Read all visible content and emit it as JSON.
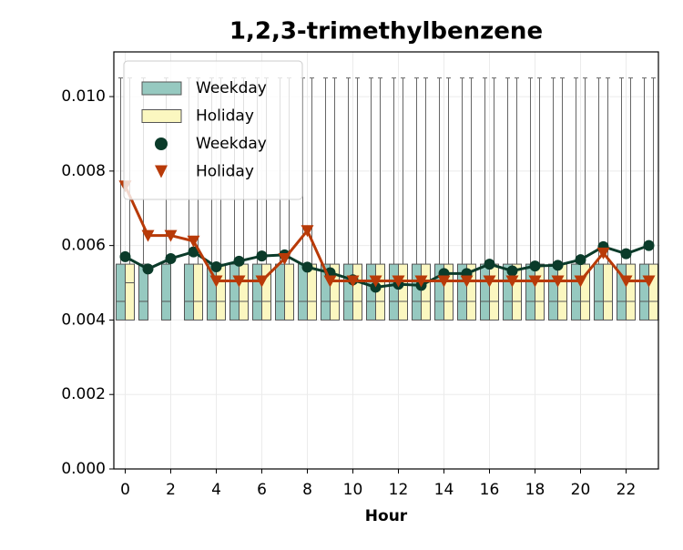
{
  "chart_data": {
    "type": "box",
    "title": "1,2,3-trimethylbenzene",
    "xlabel": "Hour",
    "x": [
      0,
      1,
      2,
      3,
      4,
      5,
      6,
      7,
      8,
      9,
      10,
      11,
      12,
      13,
      14,
      15,
      16,
      17,
      18,
      19,
      20,
      21,
      22,
      23
    ],
    "xlim": [
      -0.5,
      23.5
    ],
    "xticks": [
      0,
      2,
      4,
      6,
      8,
      10,
      12,
      14,
      16,
      18,
      20,
      22
    ],
    "ylim": [
      0,
      0.0112
    ],
    "yticks": [
      {
        "value": 0,
        "label": "0.000"
      },
      {
        "value": 0.002,
        "label": "0.002"
      },
      {
        "value": 0.004,
        "label": "0.004"
      },
      {
        "value": 0.006,
        "label": "0.006"
      },
      {
        "value": 0.008,
        "label": "0.008"
      },
      {
        "value": 0.01,
        "label": "0.010"
      }
    ],
    "grid": true,
    "legend": "upper left",
    "boxes": [
      {
        "name": "Weekday",
        "color": "#96c9c0",
        "whislo": [
          0.004,
          0.004,
          0.004,
          0.004,
          0.004,
          0.004,
          0.004,
          0.004,
          0.004,
          0.004,
          0.004,
          0.004,
          0.004,
          0.004,
          0.004,
          0.004,
          0.004,
          0.004,
          0.004,
          0.004,
          0.004,
          0.004,
          0.004,
          0.004
        ],
        "q1": [
          0.004,
          0.004,
          0.004,
          0.004,
          0.004,
          0.004,
          0.004,
          0.004,
          0.004,
          0.004,
          0.004,
          0.004,
          0.004,
          0.004,
          0.004,
          0.004,
          0.004,
          0.004,
          0.004,
          0.004,
          0.004,
          0.004,
          0.004,
          0.004
        ],
        "median": [
          0.0045,
          0.0045,
          0.0045,
          0.0045,
          0.0045,
          0.0045,
          0.0045,
          0.0045,
          0.0045,
          0.0045,
          0.0045,
          0.0045,
          0.0045,
          0.0045,
          0.0045,
          0.0045,
          0.0045,
          0.0045,
          0.0045,
          0.0045,
          0.0045,
          0.0045,
          0.0045,
          0.0045
        ],
        "q3": [
          0.0055,
          0.0055,
          0.0055,
          0.0055,
          0.0055,
          0.0055,
          0.0055,
          0.0055,
          0.0055,
          0.0055,
          0.0055,
          0.0055,
          0.0055,
          0.0055,
          0.0055,
          0.0055,
          0.0055,
          0.0055,
          0.0055,
          0.0055,
          0.0055,
          0.0055,
          0.0055,
          0.0055
        ],
        "whishi": [
          0.0105,
          0.0105,
          0.0105,
          0.0105,
          0.0105,
          0.0105,
          0.0105,
          0.0105,
          0.0105,
          0.0105,
          0.0105,
          0.0105,
          0.0105,
          0.0105,
          0.0105,
          0.0105,
          0.0105,
          0.0105,
          0.0105,
          0.0105,
          0.0105,
          0.0105,
          0.0105,
          0.0105
        ]
      },
      {
        "name": "Holiday",
        "color": "#fbf7c0",
        "whislo": [
          0.004,
          null,
          null,
          0.004,
          0.004,
          0.004,
          0.004,
          0.004,
          0.004,
          0.004,
          0.004,
          0.004,
          0.004,
          0.004,
          0.004,
          0.004,
          0.004,
          0.004,
          0.004,
          0.004,
          0.004,
          0.004,
          0.004,
          0.004
        ],
        "q1": [
          0.004,
          null,
          null,
          0.004,
          0.004,
          0.004,
          0.004,
          0.004,
          0.004,
          0.004,
          0.004,
          0.004,
          0.004,
          0.004,
          0.004,
          0.004,
          0.004,
          0.004,
          0.004,
          0.004,
          0.004,
          0.004,
          0.004,
          0.004
        ],
        "median": [
          0.005,
          null,
          null,
          0.0045,
          0.0045,
          0.0045,
          0.0045,
          0.0045,
          0.0045,
          0.0045,
          0.0045,
          0.0045,
          0.0045,
          0.0045,
          0.0045,
          0.0045,
          0.0045,
          0.0045,
          0.0045,
          0.0045,
          0.0045,
          0.0045,
          0.0045,
          0.0045
        ],
        "q3": [
          0.0055,
          null,
          null,
          0.0055,
          0.0055,
          0.0055,
          0.0055,
          0.0055,
          0.0055,
          0.0055,
          0.0055,
          0.0055,
          0.0055,
          0.0055,
          0.0055,
          0.0055,
          0.0055,
          0.0055,
          0.0055,
          0.0055,
          0.0055,
          0.0055,
          0.0055,
          0.0055
        ],
        "whishi": [
          0.0105,
          null,
          null,
          0.0105,
          0.0105,
          0.0105,
          0.0105,
          0.0105,
          0.0105,
          0.0105,
          0.0105,
          0.0105,
          0.0105,
          0.0105,
          0.0105,
          0.0105,
          0.0105,
          0.0105,
          0.0105,
          0.0105,
          0.0105,
          0.0105,
          0.0105,
          0.0105
        ]
      }
    ],
    "series": [
      {
        "name": "Weekday",
        "color": "#0b3b2a",
        "marker": "circle",
        "values": [
          0.0057,
          0.00537,
          0.00565,
          0.00583,
          0.00543,
          0.00558,
          0.00572,
          0.00575,
          0.00542,
          0.00527,
          0.00508,
          0.00488,
          0.00496,
          0.00493,
          0.00525,
          0.00525,
          0.0055,
          0.00532,
          0.00545,
          0.00547,
          0.00562,
          0.00597,
          0.00578,
          0.006
        ]
      },
      {
        "name": "Holiday",
        "color": "#b83a08",
        "marker": "triangle",
        "values": [
          0.0076,
          0.00627,
          0.00627,
          0.00612,
          0.00505,
          0.00505,
          0.00505,
          0.00565,
          0.0064,
          0.00505,
          0.00505,
          0.00505,
          0.00505,
          0.00505,
          0.00505,
          0.00505,
          0.00505,
          0.00505,
          0.00505,
          0.00505,
          0.00505,
          0.0058,
          0.00505,
          0.00505
        ]
      }
    ]
  }
}
